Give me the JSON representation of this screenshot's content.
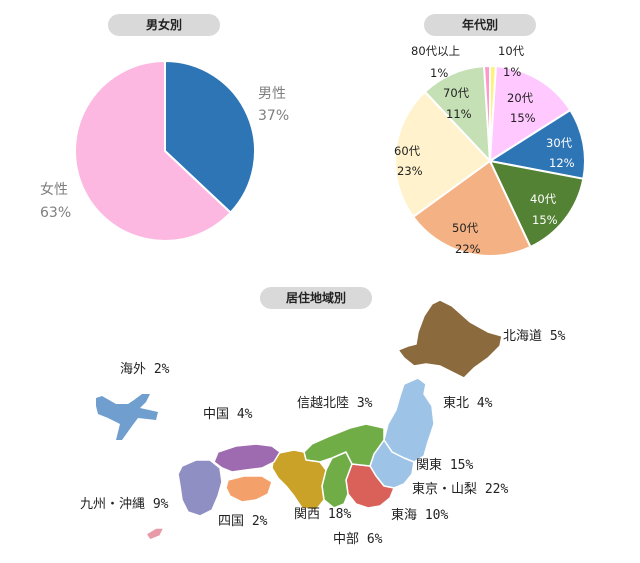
{
  "chart_data": [
    {
      "type": "pie",
      "title": "男女別",
      "categories": [
        "男性",
        "女性"
      ],
      "values": [
        37,
        63
      ],
      "colors": [
        "#2e75b6",
        "#fcb8e0"
      ]
    },
    {
      "type": "pie",
      "title": "年代別",
      "categories": [
        "10代",
        "20代",
        "30代",
        "40代",
        "50代",
        "60代",
        "70代",
        "80代以上"
      ],
      "values": [
        1,
        15,
        12,
        15,
        22,
        23,
        11,
        1
      ],
      "colors": [
        "#fff27a",
        "#ffc8ff",
        "#2e75b6",
        "#548235",
        "#f4b183",
        "#fff2cc",
        "#c5e0b4",
        "#ff99cc"
      ]
    },
    {
      "type": "map",
      "title": "居住地域別",
      "categories": [
        "北海道",
        "東北",
        "関東",
        "東京・山梨",
        "東海",
        "中部",
        "関西",
        "信越北陸",
        "中国",
        "四国",
        "九州・沖縄",
        "海外"
      ],
      "values": [
        5,
        4,
        15,
        22,
        10,
        6,
        18,
        3,
        4,
        2,
        9,
        2
      ],
      "colors": {
        "北海道": "#8b6a3e",
        "東北": "#9dc3e6",
        "関東": "#9dc3e6",
        "東京・山梨": "#d9615a",
        "東海": "#d9615a",
        "中部": "#70ad47",
        "関西": "#c9a227",
        "信越北陸": "#70ad47",
        "中国": "#9e6bb0",
        "四国": "#f4a06a",
        "九州・沖縄": "#8f8fc4",
        "海外": "#6f9ecf"
      }
    }
  ],
  "labels": {
    "gender": [
      {
        "name": "男性",
        "pct": "37%"
      },
      {
        "name": "女性",
        "pct": "63%"
      }
    ],
    "age": [
      {
        "name": "10代",
        "pct": "1%"
      },
      {
        "name": "20代",
        "pct": "15%"
      },
      {
        "name": "30代",
        "pct": "12%"
      },
      {
        "name": "40代",
        "pct": "15%"
      },
      {
        "name": "50代",
        "pct": "22%"
      },
      {
        "name": "60代",
        "pct": "23%"
      },
      {
        "name": "70代",
        "pct": "11%"
      },
      {
        "name": "80代以上",
        "pct": "1%"
      }
    ],
    "regions": {
      "hokkaido": "北海道 5%",
      "tohoku": "東北 4%",
      "kanto": "関東 15%",
      "tokyo": "東京・山梨 22%",
      "tokai": "東海 10%",
      "chubu": "中部 6%",
      "kansai": "関西 18%",
      "shinetsu": "信越北陸 3%",
      "chugoku": "中国 4%",
      "shikoku": "四国 2%",
      "kyushu": "九州・沖縄 9%",
      "overseas": "海外 2%"
    }
  }
}
